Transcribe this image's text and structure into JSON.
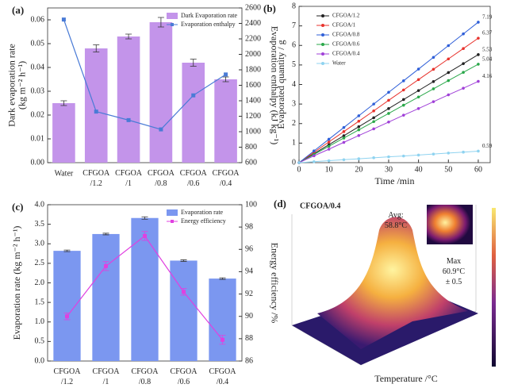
{
  "chart_data": [
    {
      "type": "bar",
      "panel_label": "(a)",
      "categories": [
        "Water",
        "CFGOA\n/1.2",
        "CFGOA\n/1",
        "CFGOA\n/0.8",
        "CFGOA\n/0.6",
        "CFGOA\n/0.4"
      ],
      "ylabel": "Dark evaporation rate\n(kg m⁻² h⁻¹)",
      "y2label": "Evaporation enthalpy (kJ kg⁻¹)",
      "ylim": [
        0,
        0.065
      ],
      "yticks": [
        {
          "value": 0,
          "label": "0.00"
        },
        {
          "value": 0.01,
          "label": "0.01"
        },
        {
          "value": 0.02,
          "label": "0.02"
        },
        {
          "value": 0.03,
          "label": "0.03"
        },
        {
          "value": 0.04,
          "label": "0.04"
        },
        {
          "value": 0.05,
          "label": "0.05"
        },
        {
          "value": 0.06,
          "label": "0.06"
        }
      ],
      "y2lim": [
        600,
        2600
      ],
      "y2ticks": [
        600,
        800,
        1000,
        1200,
        1400,
        1600,
        1800,
        2000,
        2200,
        2400,
        2600
      ],
      "legend": "upper right",
      "series": [
        {
          "name": "Dark Evaporation rate",
          "type": "bar",
          "color": "#c394ea",
          "values": [
            0.025,
            0.048,
            0.053,
            0.059,
            0.042,
            0.035
          ],
          "errors": [
            0.001,
            0.0015,
            0.001,
            0.002,
            0.0015,
            0.001
          ]
        },
        {
          "name": "Evaporation enthalpy",
          "type": "line",
          "axis": "y2",
          "color": "#4a7bd6",
          "values": [
            2450,
            1260,
            1150,
            1030,
            1470,
            1740
          ]
        }
      ]
    },
    {
      "type": "line",
      "panel_label": "(b)",
      "xlabel": "Time /min",
      "ylabel": "Evaporated quantity / g",
      "x": [
        0,
        5,
        10,
        15,
        20,
        25,
        30,
        35,
        40,
        45,
        50,
        55,
        60
      ],
      "xlim": [
        0,
        64
      ],
      "xticks": [
        0,
        10,
        20,
        30,
        40,
        50,
        60
      ],
      "ylim": [
        0,
        8
      ],
      "yticks": [
        0,
        1,
        2,
        3,
        4,
        5,
        6,
        7,
        8
      ],
      "legend": "upper left",
      "series": [
        {
          "name": "CFGOA/1.2",
          "color": "#222222",
          "end_label": "5.53",
          "values": [
            0,
            0.46,
            0.92,
            1.38,
            1.84,
            2.3,
            2.77,
            3.23,
            3.69,
            4.15,
            4.61,
            5.07,
            5.53
          ]
        },
        {
          "name": "CFGOA/1",
          "color": "#e8322c",
          "end_label": "6.37",
          "values": [
            0,
            0.53,
            1.06,
            1.59,
            2.12,
            2.65,
            3.19,
            3.72,
            4.25,
            4.78,
            5.31,
            5.84,
            6.37
          ]
        },
        {
          "name": "CFGOA/0.8",
          "color": "#2f5fd8",
          "end_label": "7.19",
          "values": [
            0,
            0.6,
            1.2,
            1.8,
            2.4,
            3.0,
            3.6,
            4.19,
            4.79,
            5.39,
            5.99,
            6.59,
            7.19
          ]
        },
        {
          "name": "CFGOA/0.6",
          "color": "#2aa84a",
          "end_label": "5.04",
          "values": [
            0,
            0.42,
            0.84,
            1.26,
            1.68,
            2.1,
            2.52,
            2.94,
            3.36,
            3.78,
            4.2,
            4.62,
            5.04
          ]
        },
        {
          "name": "CFGOA/0.4",
          "color": "#a040d8",
          "end_label": "4.16",
          "values": [
            0,
            0.35,
            0.69,
            1.04,
            1.39,
            1.73,
            2.08,
            2.43,
            2.77,
            3.12,
            3.47,
            3.81,
            4.16
          ]
        },
        {
          "name": "Water",
          "color": "#8fd3f0",
          "end_label": "0.59",
          "values": [
            0,
            0.05,
            0.1,
            0.15,
            0.2,
            0.25,
            0.3,
            0.34,
            0.39,
            0.44,
            0.49,
            0.54,
            0.59
          ]
        }
      ]
    },
    {
      "type": "bar",
      "panel_label": "(c)",
      "categories": [
        "CFGOA\n/1.2",
        "CFGOA\n/1",
        "CFGOA\n/0.8",
        "CFGOA\n/0.6",
        "CFGOA\n/0.4"
      ],
      "ylabel": "Evaporation rate  (kg m⁻² h⁻¹)",
      "y2label": "Energy efficiency /%",
      "ylim": [
        0,
        4
      ],
      "yticks": [
        {
          "value": 0,
          "label": "0.0"
        },
        {
          "value": 0.5,
          "label": "0.5"
        },
        {
          "value": 1,
          "label": "1.0"
        },
        {
          "value": 1.5,
          "label": "1.5"
        },
        {
          "value": 2,
          "label": "2.0"
        },
        {
          "value": 2.5,
          "label": "2.5"
        },
        {
          "value": 3,
          "label": "3.0"
        },
        {
          "value": 3.5,
          "label": "3.5"
        },
        {
          "value": 4,
          "label": "4.0"
        }
      ],
      "y2lim": [
        86,
        100
      ],
      "y2ticks": [
        86,
        88,
        90,
        92,
        94,
        96,
        98,
        100
      ],
      "legend": "upper right",
      "series": [
        {
          "name": "Evaporation rate",
          "type": "bar",
          "color": "#7b97f0",
          "values": [
            2.82,
            3.25,
            3.66,
            2.57,
            2.11
          ],
          "errors": [
            0.02,
            0.02,
            0.03,
            0.02,
            0.02
          ]
        },
        {
          "name": "Energy efficiency",
          "type": "line",
          "axis": "y2",
          "color": "#e040e0",
          "values": [
            90.0,
            94.5,
            97.2,
            92.2,
            87.9
          ],
          "errors": [
            0.3,
            0.4,
            0.4,
            0.3,
            0.4
          ]
        }
      ]
    },
    {
      "type": "surface",
      "panel_label": "(d)",
      "title": "CFGOA/0.4",
      "annotations": [
        "Avg:\n58.8°C",
        "Max\n60.9°C\n± 0.5"
      ],
      "xlabel": "Temperature /°C"
    }
  ]
}
